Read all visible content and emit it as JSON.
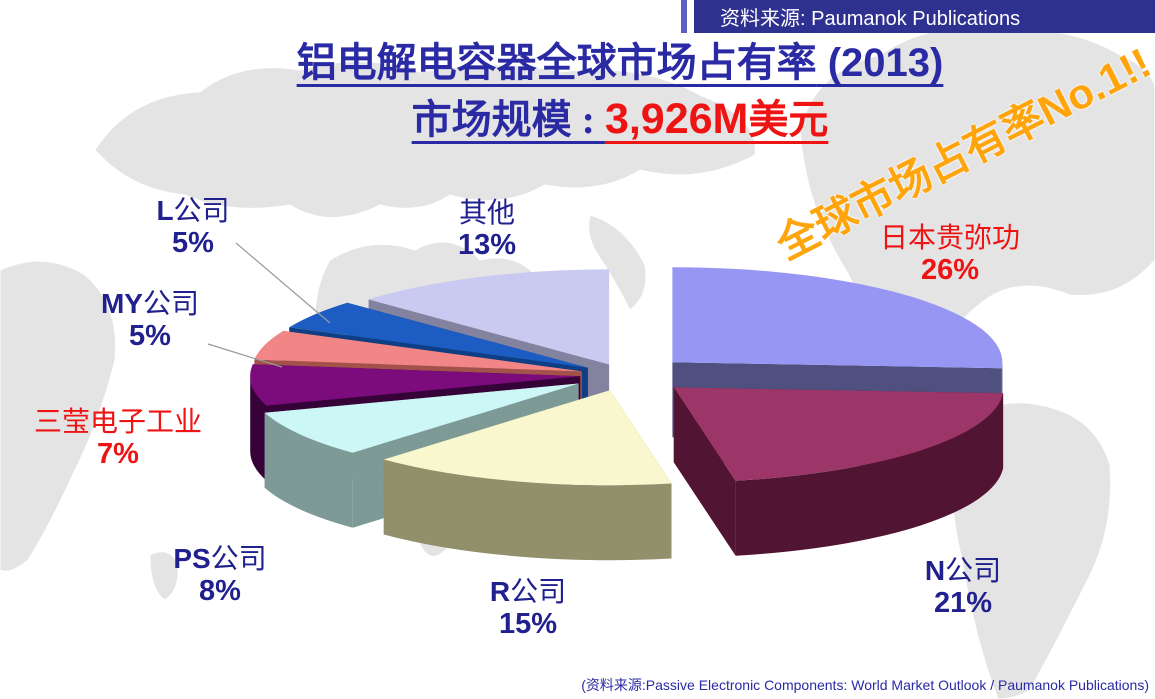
{
  "header": {
    "text": "资料来源:  Paumanok Publications",
    "bg_color": "#2f3190",
    "accent_color": "#5a5fc0",
    "text_color": "#ffffff"
  },
  "title": {
    "line1_main": "铝电解电容器全球市场占有率",
    "line1_paren": " (2013)",
    "line2_label": "市场规模 : ",
    "line2_value": "3,926M",
    "line2_unit": "美元",
    "title_color": "#2a2aa4",
    "value_color": "#ee1414"
  },
  "stamp": {
    "text": "全球市场占有率No.1!!",
    "color": "#ffa40a"
  },
  "footer": {
    "text": "(资料来源:Passive Electronic Components: World Market Outlook / Paumanok Publications)",
    "color": "#2a2aa4"
  },
  "chart_data": {
    "type": "pie",
    "effect": "3d-exploded",
    "start_angle_deg": -90,
    "direction": "clockwise",
    "title": "铝电解电容器全球市场占有率 (2013)",
    "market_size": "3,926M美元",
    "year": "2013",
    "unit": "%",
    "background": "light-gray world map",
    "slices": [
      {
        "label": "日本贵弥功",
        "value": 26,
        "pct_label": "26%",
        "top_color": "#9797f3",
        "side_color": "#4f5080",
        "label_color": "#ee1414"
      },
      {
        "label": "N公司",
        "value": 21,
        "pct_label": "21%",
        "top_color": "#9d3668",
        "side_color": "#521433",
        "label_color": "#20208f"
      },
      {
        "label": "R公司",
        "value": 15,
        "pct_label": "15%",
        "top_color": "#f8f7cd",
        "side_color": "#91906b",
        "label_color": "#20208f"
      },
      {
        "label": "PS公司",
        "value": 8,
        "pct_label": "8%",
        "top_color": "#ccf7f6",
        "side_color": "#7d9a97",
        "label_color": "#20208f"
      },
      {
        "label": "三莹电子工业",
        "value": 7,
        "pct_label": "7%",
        "top_color": "#7c0b7c",
        "side_color": "#360338",
        "label_color": "#ee1414"
      },
      {
        "label": "MY公司",
        "value": 5,
        "pct_label": "5%",
        "top_color": "#f28585",
        "side_color": "#a3524b",
        "label_color": "#20208f"
      },
      {
        "label": "L公司",
        "value": 5,
        "pct_label": "5%",
        "top_color": "#1d5cc2",
        "side_color": "#0e3f85",
        "label_color": "#20208f"
      },
      {
        "label": "其他",
        "value": 13,
        "pct_label": "13%",
        "top_color": "#c9c9f2",
        "side_color": "#83839f",
        "label_color": "#20208f"
      }
    ]
  }
}
